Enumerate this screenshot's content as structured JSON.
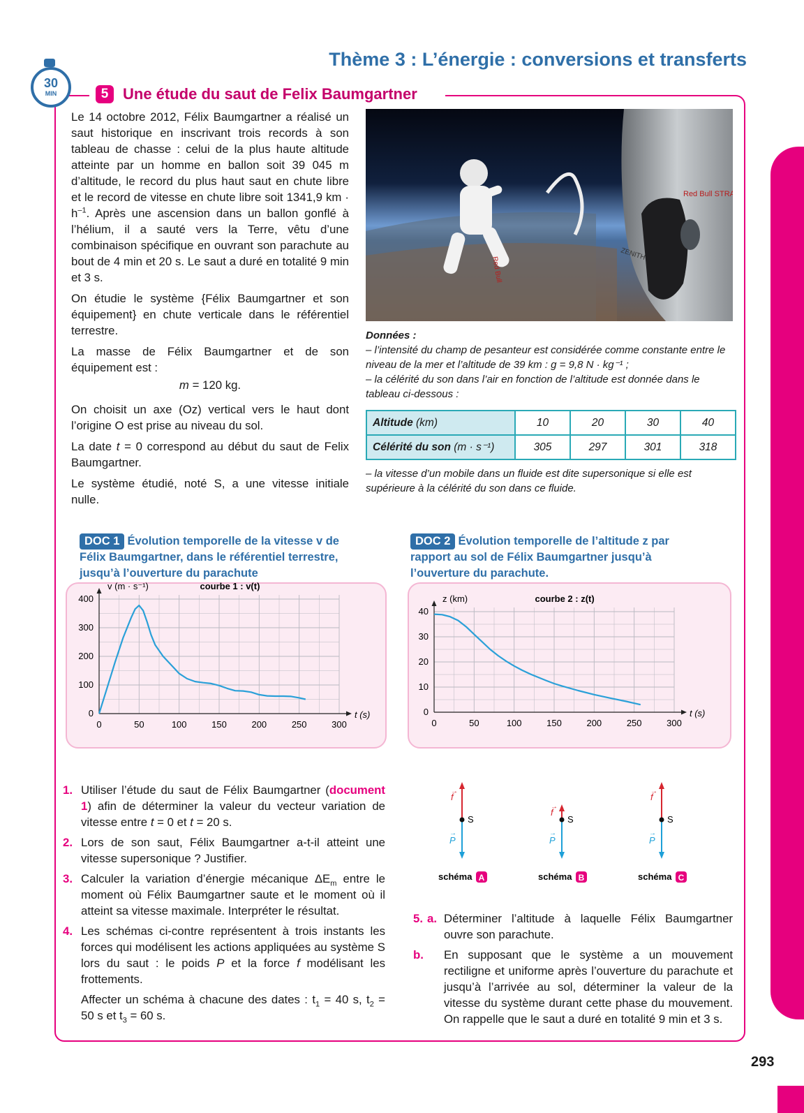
{
  "header": {
    "theme_title": "Thème 3 : L’énergie : conversions et transferts",
    "timer_value": "30",
    "timer_unit": "MIN"
  },
  "exercise": {
    "number": "5",
    "title": "Une étude du saut de Felix Baumgartner"
  },
  "intro": {
    "p1": "Le 14 octobre 2012, Félix Baumgartner a réalisé un saut historique en inscrivant trois records à son tableau de chasse : celui de la plus haute altitude atteinte par un homme en ballon soit 39 045 m d’altitude, le record du plus haut saut en chute libre et le record de vitesse en chute libre soit 1341,9 km · h",
    "p1_exp": "–1",
    "p1_end": ". Après une ascension dans un ballon gonflé à l’hélium, il a sauté vers la Terre, vêtu d’une combinaison spécifique en ouvrant son parachute au bout de 4 min et 20 s. Le saut a duré en totalité 9 min et 3 s.",
    "p2": "On étudie le système {Félix Baumgartner et son équipement} en chute verticale dans le référentiel terrestre.",
    "p3": "La masse de Félix Baumgartner et de son équipement est :",
    "p3_mass_var": "m",
    "p3_mass_value": " = 120 kg.",
    "p4": "On choisit un axe (Oz) vertical vers le haut dont l’origine O est prise au niveau du sol.",
    "p5_a": "La date ",
    "p5_var": "t",
    "p5_b": " = 0 correspond au début du saut de Felix Baumgartner.",
    "p6": "Le système étudié, noté S, a une vitesse initiale nulle."
  },
  "photo": {
    "capsule_text_1": "Red Bull STRATOS",
    "capsule_text_2": "ZENITH",
    "suit_text": "Red Bull"
  },
  "donnees": {
    "title": "Données :",
    "line1": "– l’intensité du champ de pesanteur est considérée comme constante entre le niveau de la mer et l’altitude de 39 km : g = 9,8 N · kg⁻¹ ;",
    "line2": "– la célérité du son dans l’air en fonction de l’altitude est donnée dans le tableau ci-dessous :",
    "line3": "– la vitesse d’un mobile dans un fluide est dite supersonique si elle est supérieure à la célérité du son dans ce fluide.",
    "table": {
      "row1_label_bold": "Altitude",
      "row1_label_unit": " (km)",
      "row2_label_bold": "Célérité du son",
      "row2_label_unit": " (m · s⁻¹)",
      "altitudes": [
        "10",
        "20",
        "30",
        "40"
      ],
      "celerities": [
        "305",
        "297",
        "301",
        "318"
      ]
    }
  },
  "doc1": {
    "badge": "DOC 1",
    "title": "Évolution temporelle de la vitesse v de Félix Baumgartner, dans le référentiel terrestre, jusqu’à l’ouverture du parachute",
    "curve_label": "courbe 1 : v(t)",
    "ylabel": "v (m · s⁻¹)",
    "xlabel": "t (s)"
  },
  "doc2": {
    "badge": "DOC 2",
    "title": "Évolution temporelle de l’altitude z par rapport au sol de Félix Baumgartner jusqu’à l’ouverture du parachute.",
    "curve_label": "courbe 2 : z(t)",
    "ylabel": "z (km)",
    "xlabel": "t (s)"
  },
  "chart_data": [
    {
      "type": "line",
      "title": "courbe 1 : v(t)",
      "xlabel": "t (s)",
      "ylabel": "v (m · s⁻¹)",
      "xlim": [
        0,
        300
      ],
      "ylim": [
        0,
        400
      ],
      "xticks": [
        "0",
        "50",
        "100",
        "150",
        "200",
        "250",
        "300"
      ],
      "yticks": [
        "0",
        "100",
        "200",
        "300",
        "400"
      ],
      "grid": true,
      "series": [
        {
          "x": [
            0,
            10,
            20,
            30,
            40,
            45,
            50,
            55,
            60,
            65,
            70,
            80,
            90,
            100,
            110,
            120,
            130,
            140,
            150,
            160,
            170,
            180,
            190,
            200,
            210,
            220,
            230,
            240,
            250,
            258
          ],
          "y": [
            0,
            90,
            180,
            265,
            335,
            365,
            378,
            360,
            320,
            275,
            240,
            200,
            170,
            140,
            122,
            112,
            108,
            105,
            98,
            88,
            80,
            79,
            75,
            66,
            62,
            61,
            61,
            60,
            55,
            50
          ]
        }
      ]
    },
    {
      "type": "line",
      "title": "courbe 2 : z(t)",
      "xlabel": "t (s)",
      "ylabel": "z (km)",
      "xlim": [
        0,
        300
      ],
      "ylim": [
        0,
        40
      ],
      "xticks": [
        "0",
        "50",
        "100",
        "150",
        "200",
        "250",
        "300"
      ],
      "yticks": [
        "0",
        "10",
        "20",
        "30",
        "40"
      ],
      "grid": true,
      "series": [
        {
          "x": [
            0,
            10,
            20,
            30,
            40,
            50,
            60,
            70,
            80,
            90,
            100,
            110,
            120,
            130,
            140,
            150,
            160,
            180,
            200,
            220,
            240,
            258
          ],
          "y": [
            39,
            38.8,
            38,
            36.5,
            34,
            31,
            28,
            25,
            22.5,
            20.3,
            18.4,
            16.7,
            15.2,
            13.9,
            12.6,
            11.4,
            10.4,
            8.6,
            7,
            5.6,
            4.3,
            3
          ]
        }
      ]
    }
  ],
  "questions": {
    "q1_num": "1.",
    "q1_a": "Utiliser l’étude du saut de Félix Baumgartner (",
    "q1_link": "document 1",
    "q1_b": ") afin de déterminer la valeur du vecteur variation de vitesse entre ",
    "q1_t": "t",
    "q1_c": " = 0 et ",
    "q1_d": " = 20 s.",
    "q2_num": "2.",
    "q2": "Lors de son saut, Félix Baumgartner a-t-il atteint une vitesse supersonique ? Justifier.",
    "q3_num": "3.",
    "q3_a": "Calculer la variation d’énergie mécanique ΔE",
    "q3_sub": "m",
    "q3_b": " entre le moment où Félix Baumgartner saute et le moment où il atteint sa vitesse maximale. Interpréter le résultat.",
    "q4_num": "4.",
    "q4_a": "Les schémas ci-contre représentent à trois instants les forces qui modélisent les actions appliquées au système S lors du saut : le poids ",
    "q4_P": "P",
    "q4_b": " et la force ",
    "q4_f": "f",
    "q4_c": " modélisant les frottements.",
    "q4_d": "Affecter un schéma à chacune des dates : t",
    "q4_t1": "1",
    "q4_e": " = 40 s, t",
    "q4_t2": "2",
    "q4_f2": " = 50 s et t",
    "q4_t3": "3",
    "q4_g": " = 60 s.",
    "q5_num": "5.",
    "q5a_lbl": "a.",
    "q5a": "Déterminer l’altitude à laquelle Félix Baumgartner ouvre son parachute.",
    "q5b_lbl": "b.",
    "q5b": "En supposant que le système a un mouvement rectiligne et uniforme après l’ouverture du parachute et jusqu’à l’arrivée au sol, déterminer la valeur de la vitesse du système durant cette phase du mouvement. On rappelle que le saut a duré en totalité 9 min et 3 s."
  },
  "schemas": {
    "label": "schéma",
    "letters": [
      "A",
      "B",
      "C"
    ],
    "point": "S",
    "force_f": "f",
    "force_P": "P",
    "colors": {
      "f": "#d6262f",
      "P": "#1ea0d8"
    }
  },
  "footer": {
    "page_number": "293"
  },
  "colors": {
    "accent": "#e6007e",
    "blue": "#2f6fa8",
    "teal": "#2aa9b6",
    "curve": "#2aa0d8"
  }
}
